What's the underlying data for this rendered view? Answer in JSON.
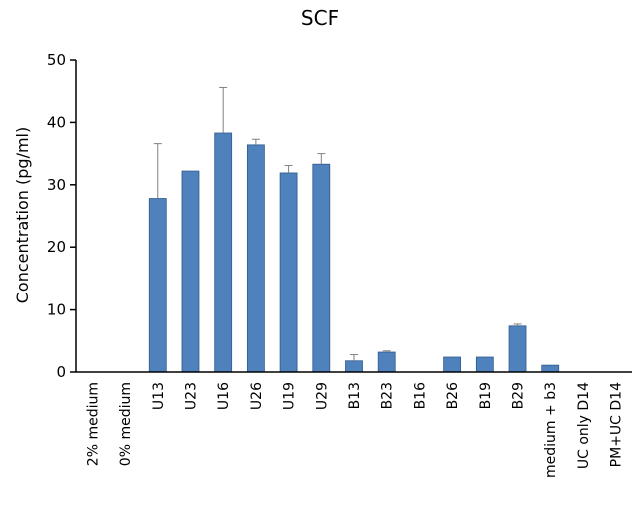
{
  "chart_data": {
    "type": "bar",
    "title": "SCF",
    "xlabel": "",
    "ylabel": "Concentration (pg/ml)",
    "ylim": [
      0,
      50
    ],
    "yticks": [
      "0",
      "10",
      "20",
      "30",
      "40",
      "50"
    ],
    "grid": false,
    "legend": "none",
    "bar_color": "#4f81bd",
    "categories": [
      "2% medium",
      "0% medium",
      "U13",
      "U23",
      "U16",
      "U26",
      "U19",
      "U29",
      "B13",
      "B23",
      "B16",
      "B26",
      "B19",
      "B29",
      "medium + b3",
      "UC only D14",
      "PM+UC D14"
    ],
    "series": [
      {
        "values": [
          0,
          0,
          27.8,
          32.2,
          38.3,
          36.4,
          31.9,
          33.3,
          1.8,
          3.2,
          0,
          2.4,
          2.4,
          7.4,
          1.1,
          0,
          0
        ],
        "errors": [
          0,
          0,
          8.8,
          0,
          7.3,
          0.9,
          1.2,
          1.7,
          1.0,
          0.2,
          0,
          0,
          0,
          0.3,
          0,
          0,
          0
        ]
      }
    ]
  }
}
